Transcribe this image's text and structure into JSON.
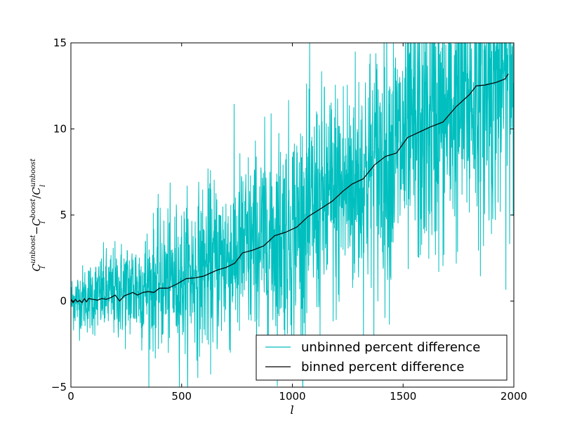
{
  "chart_data": {
    "type": "line",
    "title": "",
    "xlabel": "l",
    "ylabel": "C_l^unboost - C_l^boost / C_l^unboost",
    "ylabel_parts": {
      "c1": "C",
      "sub1": "l",
      "sup1": "unboost",
      "minus": "−",
      "c2": "C",
      "sub2": "l",
      "sup2": "boost",
      "slash": "/",
      "c3": "C",
      "sub3": "l",
      "sup3": "unboost"
    },
    "xlim": [
      0,
      2000
    ],
    "ylim": [
      -5,
      15
    ],
    "xticks": [
      0,
      500,
      1000,
      1500,
      2000
    ],
    "yticks": [
      -5,
      0,
      5,
      10,
      15
    ],
    "grid": false,
    "legend": {
      "placement": "lower-right"
    },
    "series": [
      {
        "name": "unbinned percent difference",
        "color": "#00bfbf",
        "style": "noisy",
        "trend": [
          [
            0,
            0.0
          ],
          [
            500,
            1.3
          ],
          [
            1000,
            4.2
          ],
          [
            1500,
            9.0
          ],
          [
            2000,
            13.5
          ]
        ],
        "noise_sd": [
          [
            0,
            0.8
          ],
          [
            500,
            2.2
          ],
          [
            1000,
            3.2
          ],
          [
            1500,
            3.8
          ],
          [
            2000,
            4.2
          ]
        ],
        "x_start": 2,
        "x_end": 2000
      },
      {
        "name": "binned percent difference",
        "color": "#000000",
        "x": [
          2,
          10,
          20,
          30,
          40,
          50,
          60,
          70,
          80,
          100,
          120,
          140,
          160,
          180,
          200,
          220,
          240,
          260,
          280,
          300,
          325,
          350,
          375,
          400,
          440,
          480,
          520,
          560,
          600,
          660,
          700,
          740,
          775,
          820,
          870,
          920,
          970,
          1020,
          1070,
          1120,
          1180,
          1230,
          1270,
          1320,
          1370,
          1420,
          1470,
          1520,
          1570,
          1620,
          1680,
          1740,
          1800,
          1830,
          1870,
          1920,
          1960,
          1975
        ],
        "y": [
          0.1,
          -0.1,
          0.1,
          -0.05,
          0.05,
          -0.1,
          0.15,
          -0.05,
          0.15,
          0.1,
          0.05,
          0.15,
          0.1,
          0.2,
          0.35,
          0.0,
          0.3,
          0.4,
          0.5,
          0.35,
          0.5,
          0.55,
          0.5,
          0.75,
          0.75,
          1.0,
          1.3,
          1.35,
          1.45,
          1.8,
          1.95,
          2.2,
          2.8,
          2.95,
          3.2,
          3.8,
          4.0,
          4.3,
          4.9,
          5.3,
          5.8,
          6.4,
          6.8,
          7.1,
          7.9,
          8.4,
          8.6,
          9.5,
          9.8,
          10.1,
          10.4,
          11.3,
          12.0,
          12.5,
          12.55,
          12.7,
          12.9,
          13.2
        ]
      }
    ]
  }
}
